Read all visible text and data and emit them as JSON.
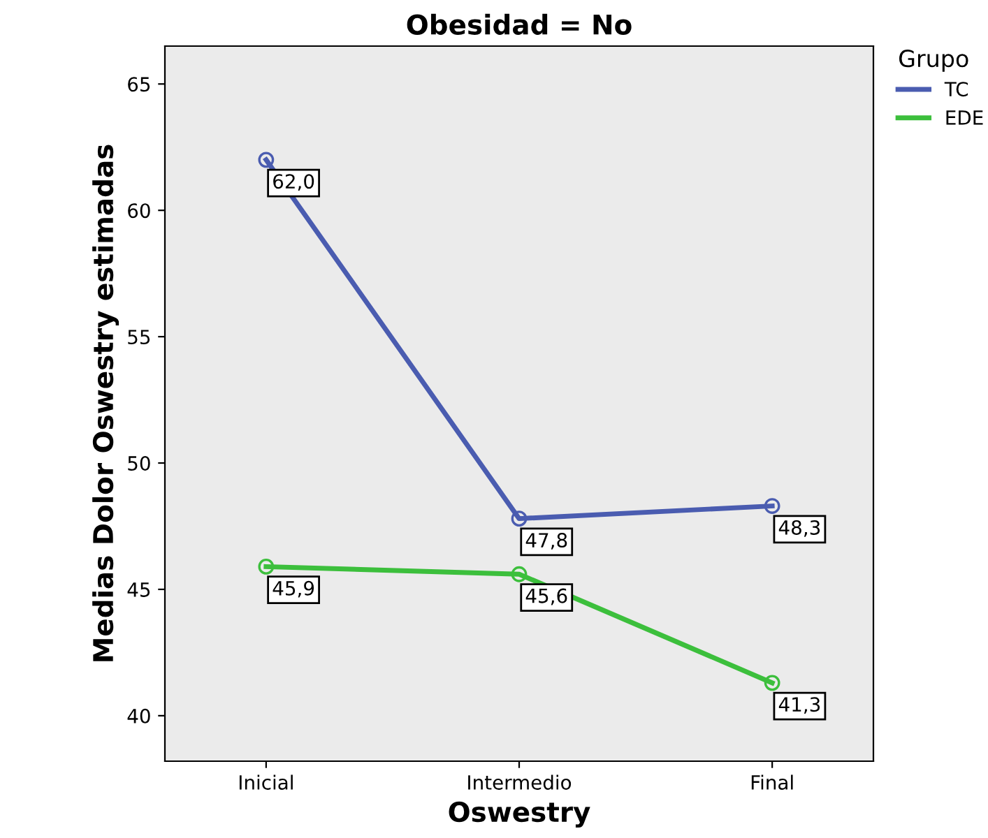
{
  "chart_data": {
    "type": "line",
    "title": "Obesidad = No",
    "xlabel": "Oswestry",
    "ylabel": "Medias Dolor Oswestry estimadas",
    "legend_title": "Grupo",
    "categories": [
      "Inicial",
      "Intermedio",
      "Final"
    ],
    "series": [
      {
        "name": "TC",
        "color": "#4a5cb0",
        "values": [
          62.0,
          47.8,
          48.3
        ],
        "value_labels": [
          "62,0",
          "47,8",
          "48,3"
        ]
      },
      {
        "name": "EDE",
        "color": "#3cbf3c",
        "values": [
          45.9,
          45.6,
          41.3
        ],
        "value_labels": [
          "45,9",
          "45,6",
          "41,3"
        ]
      }
    ],
    "ylim": [
      38.2,
      66.5
    ],
    "yticks": [
      40,
      45,
      50,
      55,
      60,
      65
    ],
    "grid": false,
    "legend": "right",
    "marker": "circle",
    "line_style": "solid"
  }
}
